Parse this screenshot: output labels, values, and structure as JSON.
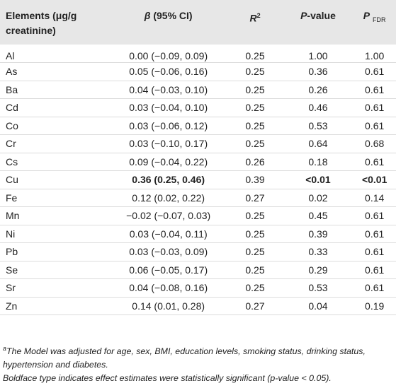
{
  "table": {
    "header": {
      "element": "Elements (μg/g creatinine)",
      "beta": {
        "symbol": "β",
        "text": "(95% CI)"
      },
      "r2": {
        "symbol": "R",
        "sup": "2"
      },
      "pvalue": {
        "symbol": "P",
        "text": "-value"
      },
      "pfdr": {
        "symbol": "P",
        "sub": "FDR"
      }
    },
    "rows": [
      {
        "cells": [
          "Al",
          "0.00 (−0.09, 0.09)",
          "0.25",
          "1.00",
          "1.00"
        ]
      },
      {
        "cells": [
          "As",
          "0.05 (−0.06, 0.16)",
          "0.25",
          "0.36",
          "0.61"
        ]
      },
      {
        "cells": [
          "Ba",
          "0.04 (−0.03, 0.10)",
          "0.25",
          "0.26",
          "0.61"
        ]
      },
      {
        "cells": [
          "Cd",
          "0.03 (−0.04, 0.10)",
          "0.25",
          "0.46",
          "0.61"
        ]
      },
      {
        "cells": [
          "Co",
          "0.03 (−0.06, 0.12)",
          "0.25",
          "0.53",
          "0.61"
        ]
      },
      {
        "cells": [
          "Cr",
          "0.03 (−0.10, 0.17)",
          "0.25",
          "0.64",
          "0.68"
        ]
      },
      {
        "cells": [
          "Cs",
          "0.09 (−0.04, 0.22)",
          "0.26",
          "0.18",
          "0.61"
        ]
      },
      {
        "cells": [
          "Cu",
          "0.36 (0.25, 0.46)",
          "0.39",
          "<0.01",
          "<0.01"
        ],
        "bold": [
          1,
          3,
          4
        ]
      },
      {
        "cells": [
          "Fe",
          "0.12 (0.02, 0.22)",
          "0.27",
          "0.02",
          "0.14"
        ]
      },
      {
        "cells": [
          "Mn",
          "−0.02 (−0.07, 0.03)",
          "0.25",
          "0.45",
          "0.61"
        ]
      },
      {
        "cells": [
          "Ni",
          "0.03 (−0.04, 0.11)",
          "0.25",
          "0.39",
          "0.61"
        ]
      },
      {
        "cells": [
          "Pb",
          "0.03 (−0.03, 0.09)",
          "0.25",
          "0.33",
          "0.61"
        ]
      },
      {
        "cells": [
          "Se",
          "0.06 (−0.05, 0.17)",
          "0.25",
          "0.29",
          "0.61"
        ]
      },
      {
        "cells": [
          "Sr",
          "0.04 (−0.08, 0.16)",
          "0.25",
          "0.53",
          "0.61"
        ]
      },
      {
        "cells": [
          "Zn",
          "0.14 (0.01, 0.28)",
          "0.27",
          "0.04",
          "0.19"
        ]
      }
    ],
    "footnotes": [
      {
        "marker": "a",
        "text": "The Model was adjusted for age, sex, BMI, education levels, smoking status, drinking status, hypertension and diabetes."
      },
      {
        "text": "Boldface type indicates effect estimates were statistically significant (p-value < 0.05)."
      }
    ]
  }
}
